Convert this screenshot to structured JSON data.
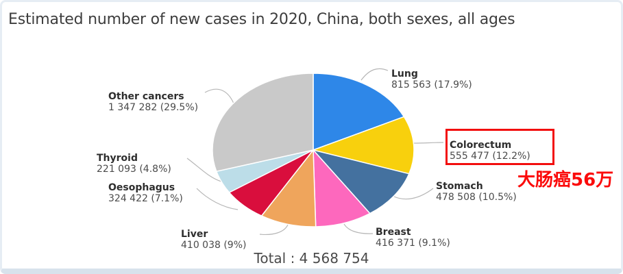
{
  "title": "Estimated number of new cases in 2020, China, both sexes, all ages",
  "total_label": "Total : 4 568 754",
  "annotation": {
    "text": "大肠癌56万",
    "text_color": "#fb0b0b",
    "box_color": "#f20d0d",
    "highlighted_slice": "Colorectum"
  },
  "chart_data": {
    "type": "pie",
    "title": "Estimated number of new cases in 2020, China, both sexes, all ages",
    "total": 4568754,
    "total_label": "Total : 4 568 754",
    "legend_position": "around-slices",
    "start_angle_deg": 0,
    "direction": "clockwise",
    "slices": [
      {
        "label": "Lung",
        "value": 815563,
        "pct": 17.9,
        "display": "815 563 (17.9%)",
        "color": "#2e87e8"
      },
      {
        "label": "Colorectum",
        "value": 555477,
        "pct": 12.2,
        "display": "555 477 (12.2%)",
        "color": "#f8d00d"
      },
      {
        "label": "Stomach",
        "value": 478508,
        "pct": 10.5,
        "display": "478 508 (10.5%)",
        "color": "#44719f"
      },
      {
        "label": "Breast",
        "value": 416371,
        "pct": 9.1,
        "display": "416 371 (9.1%)",
        "color": "#fd68bd"
      },
      {
        "label": "Liver",
        "value": 410038,
        "pct": 9.0,
        "display": "410 038 (9%)",
        "color": "#efa55c"
      },
      {
        "label": "Oesophagus",
        "value": 324422,
        "pct": 7.1,
        "display": "324 422 (7.1%)",
        "color": "#d90e3d"
      },
      {
        "label": "Thyroid",
        "value": 221093,
        "pct": 4.8,
        "display": "221 093 (4.8%)",
        "color": "#bcdde8"
      },
      {
        "label": "Other cancers",
        "value": 1347282,
        "pct": 29.5,
        "display": "1 347 282 (29.5%)",
        "color": "#c9c9c9"
      }
    ]
  }
}
